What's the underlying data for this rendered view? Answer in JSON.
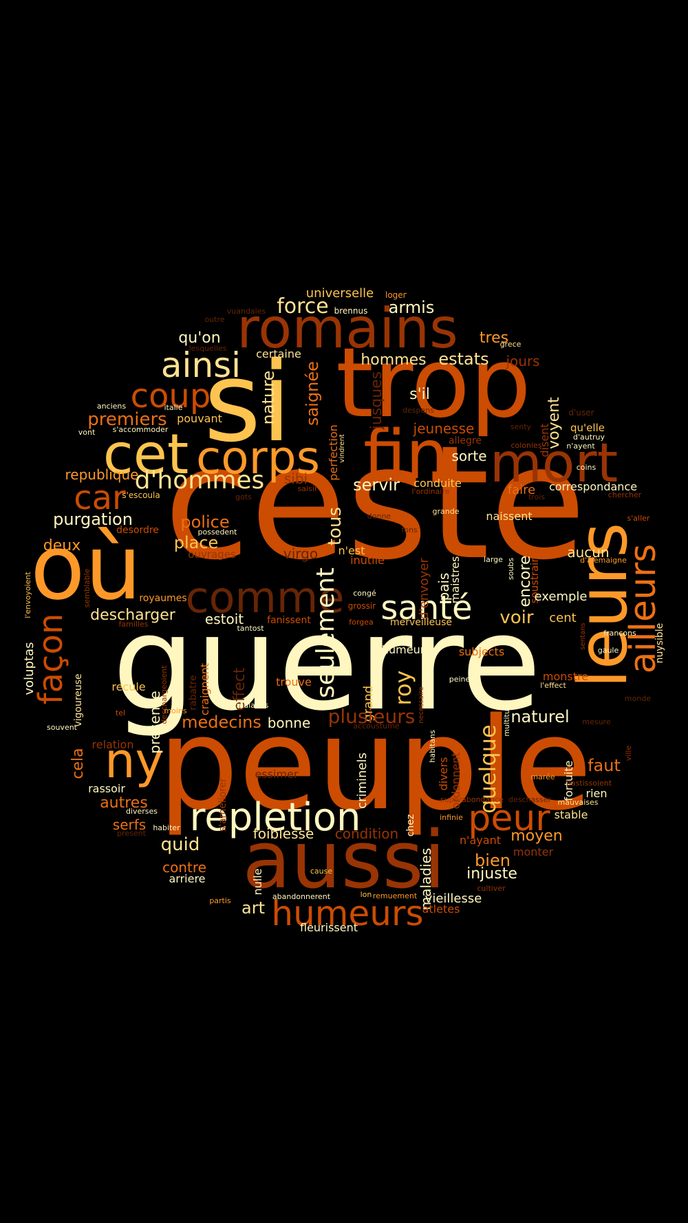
{
  "palette": {
    "background": "#000000",
    "cream": "#fff7bf",
    "light_yellow": "#fee391",
    "yellow": "#fec44f",
    "light_orange": "#fe9929",
    "orange": "#ec7014",
    "dark_orange": "#cc4c02",
    "brown": "#993404",
    "dark_brown": "#662506"
  },
  "words": [
    {
      "text": "ceste",
      "color": "#cc4c02"
    },
    {
      "text": "guerre",
      "color": "#fff7bf"
    },
    {
      "text": "peuple",
      "color": "#cc4c02"
    },
    {
      "text": "trop",
      "color": "#cc4c02"
    },
    {
      "text": "si",
      "color": "#fec44f"
    },
    {
      "text": "aussi",
      "color": "#993404"
    },
    {
      "text": "romains",
      "color": "#993404"
    },
    {
      "text": "où",
      "color": "#fe9929"
    },
    {
      "text": "fin",
      "color": "#cc4c02"
    },
    {
      "text": "mort",
      "color": "#993404"
    },
    {
      "text": "cet",
      "color": "#fec44f"
    },
    {
      "text": "corps",
      "color": "#fe9929"
    },
    {
      "text": "leurs",
      "color": "#fe9929"
    },
    {
      "text": "ailleurs",
      "color": "#ec7014"
    },
    {
      "text": "repletion",
      "color": "#fff7bf"
    },
    {
      "text": "comme",
      "color": "#662506"
    },
    {
      "text": "humeurs",
      "color": "#cc4c02"
    },
    {
      "text": "ny",
      "color": "#fe9929"
    },
    {
      "text": "peur",
      "color": "#cc4c02"
    },
    {
      "text": "santé",
      "color": "#fff7bf"
    },
    {
      "text": "ainsi",
      "color": "#fee391"
    },
    {
      "text": "coup",
      "color": "#cc4c02"
    },
    {
      "text": "car",
      "color": "#cc4c02"
    },
    {
      "text": "d'hommes",
      "color": "#fee391"
    },
    {
      "text": "façon",
      "color": "#cc4c02"
    },
    {
      "text": "seulement",
      "color": "#fff7bf"
    },
    {
      "text": "force",
      "color": "#fee391"
    },
    {
      "text": "armis",
      "color": "#fff7bf"
    },
    {
      "text": "universelle",
      "color": "#fec44f"
    },
    {
      "text": "logeг",
      "color": "#fe9929"
    },
    {
      "text": "brennus",
      "color": "#fff7bf"
    },
    {
      "text": "vuandales",
      "color": "#662506"
    },
    {
      "text": "outre",
      "color": "#662506"
    },
    {
      "text": "qu'on",
      "color": "#fff7bf"
    },
    {
      "text": "lesquelles",
      "color": "#662506"
    },
    {
      "text": "certaine",
      "color": "#fee391"
    },
    {
      "text": "hommes",
      "color": "#fee391"
    },
    {
      "text": "estats",
      "color": "#fee391"
    },
    {
      "text": "tres",
      "color": "#fe9929"
    },
    {
      "text": "grece",
      "color": "#fee391"
    },
    {
      "text": "jours",
      "color": "#993404"
    },
    {
      "text": "nature",
      "color": "#fee391"
    },
    {
      "text": "saignée",
      "color": "#ec7014"
    },
    {
      "text": "jusques",
      "color": "#662506"
    },
    {
      "text": "s'il",
      "color": "#fff7bf"
    },
    {
      "text": "despens",
      "color": "#662506"
    },
    {
      "text": "d'user",
      "color": "#662506"
    },
    {
      "text": "anciens",
      "color": "#fff7bf"
    },
    {
      "text": "italie",
      "color": "#fff7bf"
    },
    {
      "text": "premiers",
      "color": "#ec7014"
    },
    {
      "text": "pouvant",
      "color": "#fec44f"
    },
    {
      "text": "s'accommoder",
      "color": "#fff7bf"
    },
    {
      "text": "vont",
      "color": "#fff7bf"
    },
    {
      "text": "perfection",
      "color": "#ec7014"
    },
    {
      "text": "vindrent",
      "color": "#fee391"
    },
    {
      "text": "jeunesse",
      "color": "#cc4c02"
    },
    {
      "text": "allegre",
      "color": "#993404"
    },
    {
      "text": "senty",
      "color": "#662506"
    },
    {
      "text": "disent",
      "color": "#993404"
    },
    {
      "text": "voyent",
      "color": "#fee391"
    },
    {
      "text": "qu'elle",
      "color": "#fec44f"
    },
    {
      "text": "d'autruy",
      "color": "#fff7bf"
    },
    {
      "text": "n'ayent",
      "color": "#fff7bf"
    },
    {
      "text": "colonies",
      "color": "#993404"
    },
    {
      "text": "sorte",
      "color": "#fff7bf"
    },
    {
      "text": "republique",
      "color": "#fe9929"
    },
    {
      "text": "sibi",
      "color": "#993404"
    },
    {
      "text": "saisir",
      "color": "#993404"
    },
    {
      "text": "tous",
      "color": "#fee391"
    },
    {
      "text": "servir",
      "color": "#fff7bf"
    },
    {
      "text": "conduite",
      "color": "#fec44f"
    },
    {
      "text": "l'ordinaire",
      "color": "#993404"
    },
    {
      "text": "faire",
      "color": "#ec7014"
    },
    {
      "text": "correspondance",
      "color": "#fff7bf"
    },
    {
      "text": "coins",
      "color": "#fff7bf"
    },
    {
      "text": "chercher",
      "color": "#993404"
    },
    {
      "text": "trois",
      "color": "#662506"
    },
    {
      "text": "s'escoula",
      "color": "#fec44f"
    },
    {
      "text": "gots",
      "color": "#662506"
    },
    {
      "text": "purgation",
      "color": "#fff7bf"
    },
    {
      "text": "desordre",
      "color": "#cc4c02"
    },
    {
      "text": "police",
      "color": "#ec7014"
    },
    {
      "text": "possedent",
      "color": "#fff7bf"
    },
    {
      "text": "donne",
      "color": "#662506"
    },
    {
      "text": "fons",
      "color": "#662506"
    },
    {
      "text": "grande",
      "color": "#fee391"
    },
    {
      "text": "naissent",
      "color": "#fee391"
    },
    {
      "text": "s'aller",
      "color": "#cc4c02"
    },
    {
      "text": "deux",
      "color": "#fe9929"
    },
    {
      "text": "place",
      "color": "#fec44f"
    },
    {
      "text": "ouvrages",
      "color": "#993404"
    },
    {
      "text": "virgo",
      "color": "#662506"
    },
    {
      "text": "n'est",
      "color": "#fec44f"
    },
    {
      "text": "inutile",
      "color": "#cc4c02"
    },
    {
      "text": "d'envoyer",
      "color": "#993404"
    },
    {
      "text": "pais",
      "color": "#fff7bf"
    },
    {
      "text": "maistres",
      "color": "#fff7bf"
    },
    {
      "text": "encore",
      "color": "#fff7bf"
    },
    {
      "text": "soustraire",
      "color": "#cc4c02"
    },
    {
      "text": "soubs",
      "color": "#fff7bf"
    },
    {
      "text": "large",
      "color": "#fff7bf"
    },
    {
      "text": "aucun",
      "color": "#fee391"
    },
    {
      "text": "d'alemaigne",
      "color": "#fe9929"
    },
    {
      "text": "l'envoyoient",
      "color": "#fec44f"
    },
    {
      "text": "semblable",
      "color": "#993404"
    },
    {
      "text": "voluptas",
      "color": "#fff7bf"
    },
    {
      "text": "royaumes",
      "color": "#fe9929"
    },
    {
      "text": "familles",
      "color": "#993404"
    },
    {
      "text": "descharger",
      "color": "#fee391"
    },
    {
      "text": "estoit",
      "color": "#fff7bf"
    },
    {
      "text": "tantost",
      "color": "#fff7bf"
    },
    {
      "text": "fanissent",
      "color": "#cc4c02"
    },
    {
      "text": "congé",
      "color": "#fff7bf"
    },
    {
      "text": "grossir",
      "color": "#cc4c02"
    },
    {
      "text": "forgea",
      "color": "#cc4c02"
    },
    {
      "text": "merveilleuse",
      "color": "#fec44f"
    },
    {
      "text": "voir",
      "color": "#fec44f"
    },
    {
      "text": "cent",
      "color": "#fec44f"
    },
    {
      "text": "exemple",
      "color": "#fff7bf"
    },
    {
      "text": "sentans",
      "color": "#993404"
    },
    {
      "text": "francons",
      "color": "#fff7bf"
    },
    {
      "text": "nuysible",
      "color": "#fee391"
    },
    {
      "text": "gaule",
      "color": "#fff7bf"
    },
    {
      "text": "vigoureuse",
      "color": "#fee391"
    },
    {
      "text": "deschargeoient",
      "color": "#993404"
    },
    {
      "text": "rabatre",
      "color": "#662506"
    },
    {
      "text": "craignent",
      "color": "#ec7014"
    },
    {
      "text": "effect",
      "color": "#662506"
    },
    {
      "text": "d'humeurs",
      "color": "#fff7bf"
    },
    {
      "text": "subjects",
      "color": "#ec7014"
    },
    {
      "text": "roy",
      "color": "#fec44f"
    },
    {
      "text": "necessaire",
      "color": "#993404"
    },
    {
      "text": "peine",
      "color": "#fff7bf"
    },
    {
      "text": "monstre",
      "color": "#cc4c02"
    },
    {
      "text": "l'effect",
      "color": "#fee391"
    },
    {
      "text": "monde",
      "color": "#662506"
    },
    {
      "text": "recule",
      "color": "#fec44f"
    },
    {
      "text": "presence",
      "color": "#fff7bf"
    },
    {
      "text": "trouve",
      "color": "#ec7014"
    },
    {
      "text": "grand",
      "color": "#fec44f"
    },
    {
      "text": "quelque",
      "color": "#fec44f"
    },
    {
      "text": "moins",
      "color": "#fe9929"
    },
    {
      "text": "tel",
      "color": "#cc4c02"
    },
    {
      "text": "malades",
      "color": "#fff7bf"
    },
    {
      "text": "plusieurs",
      "color": "#993404"
    },
    {
      "text": "accoustumé",
      "color": "#662506"
    },
    {
      "text": "naturel",
      "color": "#fff7bf"
    },
    {
      "text": "multitude",
      "color": "#fff7bf"
    },
    {
      "text": "mesure",
      "color": "#662506"
    },
    {
      "text": "souvent",
      "color": "#fff7bf"
    },
    {
      "text": "medecins",
      "color": "#ec7014"
    },
    {
      "text": "bonne",
      "color": "#fff7bf"
    },
    {
      "text": "cela",
      "color": "#ec7014"
    },
    {
      "text": "relation",
      "color": "#993404"
    },
    {
      "text": "s'ameliorer",
      "color": "#993404"
    },
    {
      "text": "criminels",
      "color": "#fff7bf"
    },
    {
      "text": "habitans",
      "color": "#fff7bf"
    },
    {
      "text": "divers",
      "color": "#cc4c02"
    },
    {
      "text": "ordonnent",
      "color": "#993404"
    },
    {
      "text": "fortuite",
      "color": "#fff7bf"
    },
    {
      "text": "faut",
      "color": "#ec7014"
    },
    {
      "text": "ville",
      "color": "#993404"
    },
    {
      "text": "rassoir",
      "color": "#fff7bf"
    },
    {
      "text": "essimer",
      "color": "#662506"
    },
    {
      "text": "marée",
      "color": "#fe9929"
    },
    {
      "text": "bastissoient",
      "color": "#993404"
    },
    {
      "text": "rien",
      "color": "#fff7bf"
    },
    {
      "text": "autres",
      "color": "#ec7014"
    },
    {
      "text": "diverses",
      "color": "#fff7bf"
    },
    {
      "text": "chez",
      "color": "#fff7bf"
    },
    {
      "text": "maladies",
      "color": "#fff7bf"
    },
    {
      "text": "superabondance",
      "color": "#993404"
    },
    {
      "text": "deschasser",
      "color": "#662506"
    },
    {
      "text": "mauvaises",
      "color": "#fee391"
    },
    {
      "text": "serfs",
      "color": "#ec7014"
    },
    {
      "text": "habiter",
      "color": "#fff7bf"
    },
    {
      "text": "present",
      "color": "#662506"
    },
    {
      "text": "quid",
      "color": "#fee391"
    },
    {
      "text": "foiblesse",
      "color": "#fee391"
    },
    {
      "text": "condition",
      "color": "#993404"
    },
    {
      "text": "infinie",
      "color": "#fe9929"
    },
    {
      "text": "stable",
      "color": "#fee391"
    },
    {
      "text": "moyen",
      "color": "#fe9929"
    },
    {
      "text": "n'ayant",
      "color": "#cc4c02"
    },
    {
      "text": "contre",
      "color": "#ec7014"
    },
    {
      "text": "arriere",
      "color": "#fff7bf"
    },
    {
      "text": "nulle",
      "color": "#fff7bf"
    },
    {
      "text": "cause",
      "color": "#fec44f"
    },
    {
      "text": "bien",
      "color": "#fe9929"
    },
    {
      "text": "monter",
      "color": "#993404"
    },
    {
      "text": "injuste",
      "color": "#fff7bf"
    },
    {
      "text": "abandonnerent",
      "color": "#fff7bf"
    },
    {
      "text": "lon",
      "color": "#fec44f"
    },
    {
      "text": "remuement",
      "color": "#fe9929"
    },
    {
      "text": "cultiver",
      "color": "#993404"
    },
    {
      "text": "vieillesse",
      "color": "#fff7bf"
    },
    {
      "text": "partis",
      "color": "#fe9929"
    },
    {
      "text": "art",
      "color": "#fee391"
    },
    {
      "text": "atletes",
      "color": "#cc4c02"
    },
    {
      "text": "fleurissent",
      "color": "#fff7bf"
    }
  ]
}
